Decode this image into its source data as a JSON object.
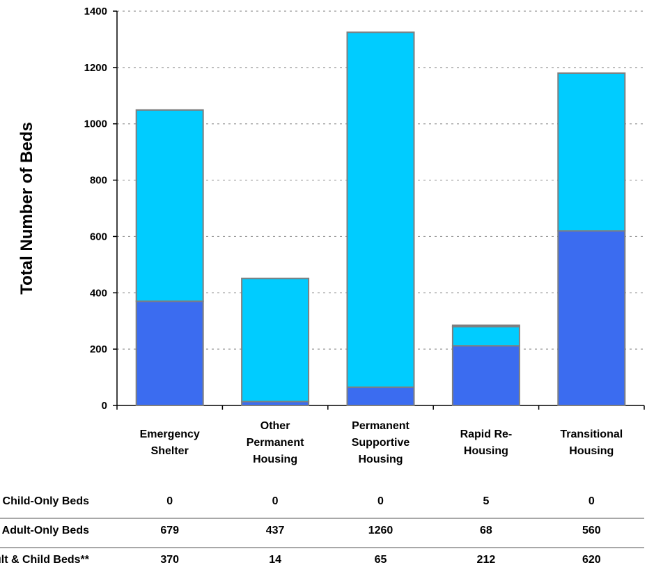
{
  "chart_data": {
    "type": "bar",
    "stacked": true,
    "ylabel": "Total Number of Beds",
    "ylim": [
      0,
      1400
    ],
    "yticks": [
      0,
      200,
      400,
      600,
      800,
      1000,
      1200,
      1400
    ],
    "grid": true,
    "categories": [
      [
        "Emergency",
        "Shelter"
      ],
      [
        "Other",
        "Permanent",
        "Housing"
      ],
      [
        "Permanent",
        "Supportive",
        "Housing"
      ],
      [
        "Rapid Re-",
        "Housing"
      ],
      [
        "Transitional",
        "Housing"
      ]
    ],
    "series": [
      {
        "name": "Adult & Child Beds**",
        "color": "#3b6cf0",
        "values": [
          370,
          14,
          65,
          212,
          620
        ]
      },
      {
        "name": "Adult-Only Beds",
        "color": "#00ccff",
        "values": [
          679,
          437,
          1260,
          68,
          560
        ]
      },
      {
        "name": "Child-Only Beds",
        "color": "#1f3d99",
        "values": [
          0,
          0,
          0,
          5,
          0
        ]
      }
    ],
    "table": {
      "row_labels": [
        "Child-Only Beds",
        "Adult-Only Beds",
        "Adult & Child Beds**"
      ],
      "rows": [
        [
          "0",
          "0",
          "0",
          "5",
          "0"
        ],
        [
          "679",
          "437",
          "1260",
          "68",
          "560"
        ],
        [
          "370",
          "14",
          "65",
          "212",
          "620"
        ]
      ]
    }
  }
}
